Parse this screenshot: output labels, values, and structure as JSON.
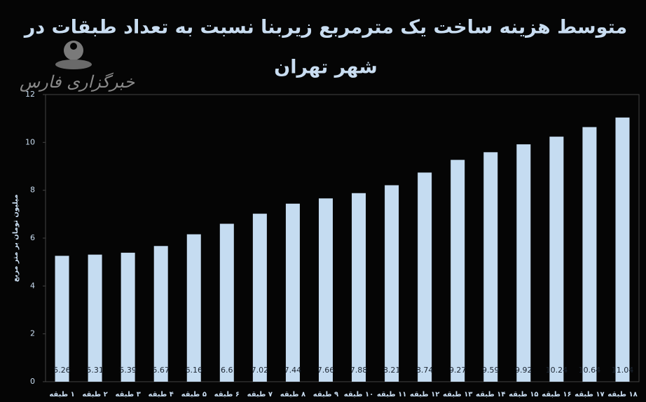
{
  "watermark": "خبرگزاری فارس",
  "chart_data": {
    "type": "bar",
    "title": [
      "متوسط هزینه ساخت یک مترمربع زیربنا نسبت به تعداد طبقات در",
      "شهر تهران"
    ],
    "y_label": "میلیون تومان بر متر مربع",
    "categories": [
      "۱ طبقه",
      "۲ طبقه",
      "۳ طبقه",
      "۴ طبقه",
      "۵ طبقه",
      "۶ طبقه",
      "۷ طبقه",
      "۸ طبقه",
      "۹ طبقه",
      "۱۰ طبقه",
      "۱۱ طبقه",
      "۱۲ طبقه",
      "۱۳ طبقه",
      "۱۴ طبقه",
      "۱۵ طبقه",
      "۱۶ طبقه",
      "۱۷ طبقه",
      "۱۸ طبقه"
    ],
    "values": [
      5.26,
      5.31,
      5.39,
      5.67,
      6.16,
      6.6,
      7.02,
      7.44,
      7.66,
      7.88,
      8.21,
      8.74,
      9.27,
      9.59,
      9.92,
      10.24,
      10.64,
      11.04
    ],
    "color": "#c5dcf1",
    "ylim": [
      0,
      12
    ],
    "yticks": [
      0,
      2,
      4,
      6,
      8,
      10,
      12
    ],
    "grid": false
  }
}
